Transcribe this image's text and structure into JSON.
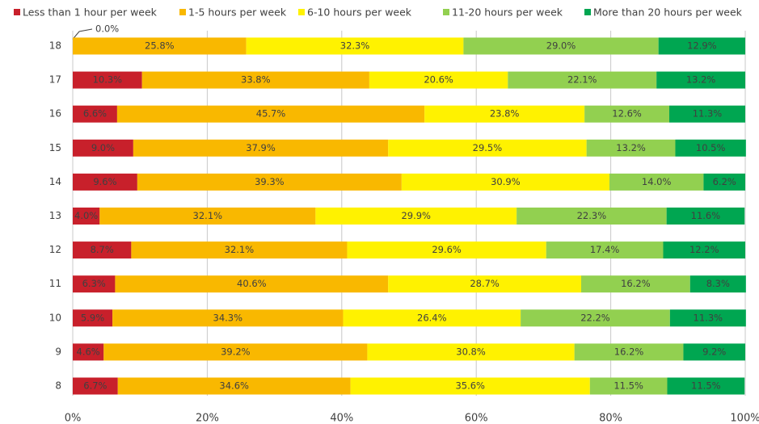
{
  "chart_data": {
    "type": "stacked-bar-horizontal",
    "categories": [
      "18",
      "17",
      "16",
      "15",
      "14",
      "13",
      "12",
      "11",
      "10",
      "9",
      "8"
    ],
    "series": [
      {
        "name": "Less than 1 hour per week",
        "color": "#c8202b",
        "values": [
          0.0,
          10.3,
          6.6,
          9.0,
          9.6,
          4.0,
          8.7,
          6.3,
          5.9,
          4.6,
          6.7
        ],
        "value_labels": [
          "0.0%",
          "10.3%",
          "6.6%",
          "9.0%",
          "9.6%",
          "4.0%",
          "8.7%",
          "6.3%",
          "5.9%",
          "4.6%",
          "6.7%"
        ]
      },
      {
        "name": "1-5 hours per week",
        "color": "#f9b800",
        "values": [
          25.8,
          33.8,
          45.7,
          37.9,
          39.3,
          32.1,
          32.1,
          40.6,
          34.3,
          39.2,
          34.6
        ],
        "value_labels": [
          "25.8%",
          "33.8%",
          "45.7%",
          "37.9%",
          "39.3%",
          "32.1%",
          "32.1%",
          "40.6%",
          "34.3%",
          "39.2%",
          "34.6%"
        ]
      },
      {
        "name": "6-10 hours per week",
        "color": "#fff200",
        "values": [
          32.3,
          20.6,
          23.8,
          29.5,
          30.9,
          29.9,
          29.6,
          28.7,
          26.4,
          30.8,
          35.6
        ],
        "value_labels": [
          "32.3%",
          "20.6%",
          "23.8%",
          "29.5%",
          "30.9%",
          "29.9%",
          "29.6%",
          "28.7%",
          "26.4%",
          "30.8%",
          "35.6%"
        ]
      },
      {
        "name": "11-20 hours per week",
        "color": "#92d050",
        "values": [
          29.0,
          22.1,
          12.6,
          13.2,
          14.0,
          22.3,
          17.4,
          16.2,
          22.2,
          16.2,
          11.5
        ],
        "value_labels": [
          "29.0%",
          "22.1%",
          "12.6%",
          "13.2%",
          "14.0%",
          "22.3%",
          "17.4%",
          "16.2%",
          "22.2%",
          "16.2%",
          "11.5%"
        ]
      },
      {
        "name": "More than 20 hours per week",
        "color": "#00a651",
        "values": [
          12.9,
          13.2,
          11.3,
          10.5,
          6.2,
          11.6,
          12.2,
          8.3,
          11.3,
          9.2,
          11.5
        ],
        "value_labels": [
          "12.9%",
          "13.2%",
          "11.3%",
          "10.5%",
          "6.2%",
          "11.6%",
          "12.2%",
          "8.3%",
          "11.3%",
          "9.2%",
          "11.5%"
        ]
      }
    ],
    "xlim": [
      0,
      100
    ],
    "xticks": [
      {
        "value": 0,
        "label": "0%"
      },
      {
        "value": 20,
        "label": "20%"
      },
      {
        "value": 40,
        "label": "40%"
      },
      {
        "value": 60,
        "label": "60%"
      },
      {
        "value": 80,
        "label": "80%"
      },
      {
        "value": 100,
        "label": "100%"
      }
    ],
    "grid": true,
    "legend": "top"
  }
}
